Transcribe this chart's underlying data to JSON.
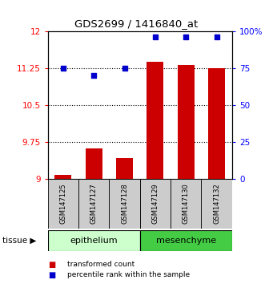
{
  "title": "GDS2699 / 1416840_at",
  "samples": [
    "GSM147125",
    "GSM147127",
    "GSM147128",
    "GSM147129",
    "GSM147130",
    "GSM147132"
  ],
  "red_values": [
    9.08,
    9.62,
    9.42,
    11.38,
    11.32,
    11.25
  ],
  "blue_values_pct": [
    75,
    70,
    75,
    96,
    96,
    96
  ],
  "ylim_left": [
    9.0,
    12.0
  ],
  "yticks_left": [
    9.0,
    9.75,
    10.5,
    11.25,
    12.0
  ],
  "ytick_labels_left": [
    "9",
    "9.75",
    "10.5",
    "11.25",
    "12"
  ],
  "ylim_right": [
    0,
    100
  ],
  "yticks_right": [
    0,
    25,
    50,
    75,
    100
  ],
  "ytick_labels_right": [
    "0",
    "25",
    "50",
    "75",
    "100%"
  ],
  "groups": [
    {
      "label": "epithelium",
      "start": 0,
      "end": 3,
      "color": "#ccffcc"
    },
    {
      "label": "mesenchyme",
      "start": 3,
      "end": 6,
      "color": "#44cc44"
    }
  ],
  "bar_color": "#cc0000",
  "dot_color": "#0000cc",
  "bar_width": 0.55,
  "sample_box_color": "#cccccc",
  "legend_items": [
    {
      "color": "#cc0000",
      "label": "transformed count"
    },
    {
      "color": "#0000cc",
      "label": "percentile rank within the sample"
    }
  ]
}
